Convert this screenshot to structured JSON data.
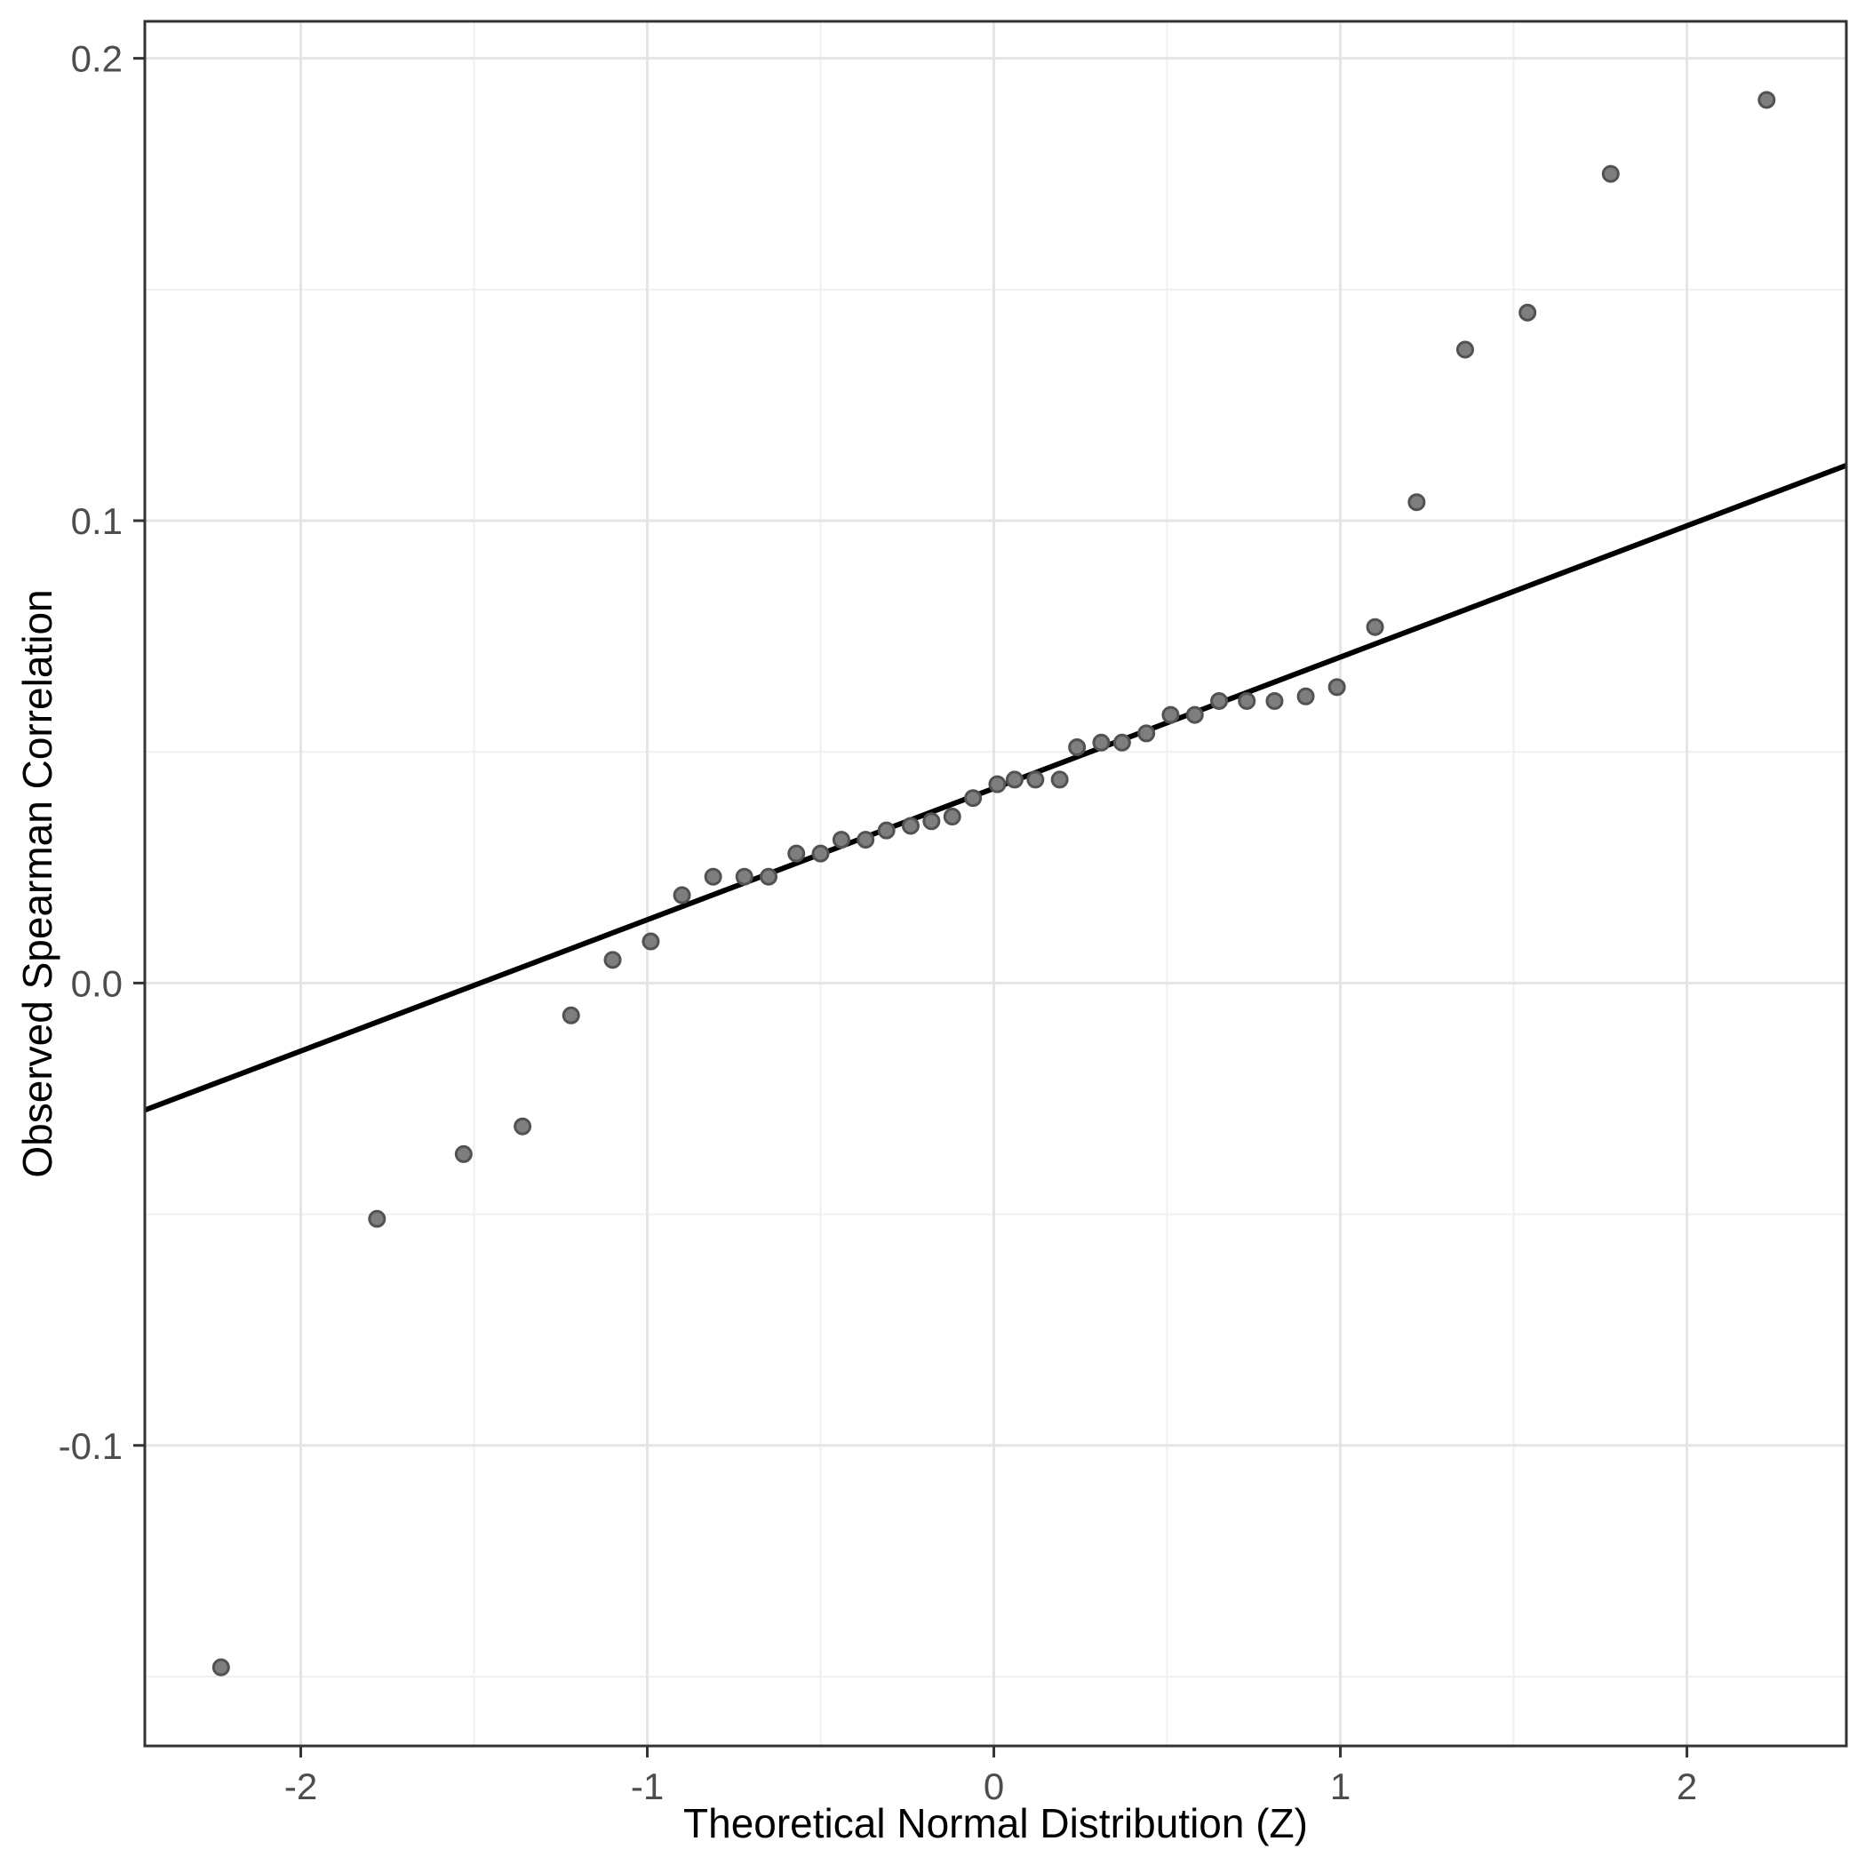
{
  "chart_data": {
    "type": "scatter",
    "title": "",
    "xlabel": "Theoretical Normal Distribution (Z)",
    "ylabel": "Observed Spearman Correlation",
    "legend": "none",
    "grid": "major+minor",
    "xlim": [
      -2.45,
      2.46
    ],
    "ylim": [
      -0.165,
      0.208
    ],
    "x_ticks": {
      "values": [
        -2,
        -1,
        0,
        1,
        2
      ],
      "labels": [
        "-2",
        "-1",
        "0",
        "1",
        "2"
      ]
    },
    "y_ticks": {
      "values": [
        0.2,
        0.1,
        0.0,
        -0.1
      ],
      "labels": [
        "0.2",
        "0.1",
        "0.0",
        "-0.1"
      ]
    },
    "x_minor_ticks": [
      -1.5,
      -0.5,
      0.5,
      1.5
    ],
    "y_minor_ticks": [
      0.15,
      0.05,
      -0.05,
      -0.15
    ],
    "points": [
      [
        -2.23,
        -0.148
      ],
      [
        -1.78,
        -0.051
      ],
      [
        -1.53,
        -0.037
      ],
      [
        -1.36,
        -0.031
      ],
      [
        -1.22,
        -0.007
      ],
      [
        -1.1,
        0.005
      ],
      [
        -0.99,
        0.009
      ],
      [
        -0.9,
        0.019
      ],
      [
        -0.81,
        0.023
      ],
      [
        -0.72,
        0.023
      ],
      [
        -0.65,
        0.023
      ],
      [
        -0.57,
        0.028
      ],
      [
        -0.5,
        0.028
      ],
      [
        -0.44,
        0.031
      ],
      [
        -0.37,
        0.031
      ],
      [
        -0.31,
        0.033
      ],
      [
        -0.24,
        0.034
      ],
      [
        -0.18,
        0.035
      ],
      [
        -0.12,
        0.036
      ],
      [
        -0.06,
        0.04
      ],
      [
        0.01,
        0.043
      ],
      [
        0.06,
        0.044
      ],
      [
        0.12,
        0.044
      ],
      [
        0.19,
        0.044
      ],
      [
        0.24,
        0.051
      ],
      [
        0.31,
        0.052
      ],
      [
        0.37,
        0.052
      ],
      [
        0.44,
        0.054
      ],
      [
        0.51,
        0.058
      ],
      [
        0.58,
        0.058
      ],
      [
        0.65,
        0.061
      ],
      [
        0.73,
        0.061
      ],
      [
        0.81,
        0.061
      ],
      [
        0.9,
        0.062
      ],
      [
        0.99,
        0.064
      ],
      [
        1.1,
        0.077
      ],
      [
        1.22,
        0.104
      ],
      [
        1.36,
        0.137
      ],
      [
        1.54,
        0.145
      ],
      [
        1.78,
        0.175
      ],
      [
        2.23,
        0.191
      ]
    ],
    "reference_line": {
      "slope": 0.0284,
      "intercept": 0.0421,
      "x1": -2.45,
      "y1": -0.0275,
      "x2": 2.46,
      "y2": 0.112
    }
  },
  "colors": {
    "background": "#ffffff",
    "panel_background": "#ffffff",
    "panel_border": "#333333",
    "grid_major": "#e5e5e5",
    "grid_minor": "#f0f0f0",
    "point_fill": "#7e7e7e",
    "point_stroke": "#525252",
    "line": "#000000",
    "tick": "#333333",
    "tick_label": "#4d4d4d",
    "axis_title": "#000000"
  }
}
